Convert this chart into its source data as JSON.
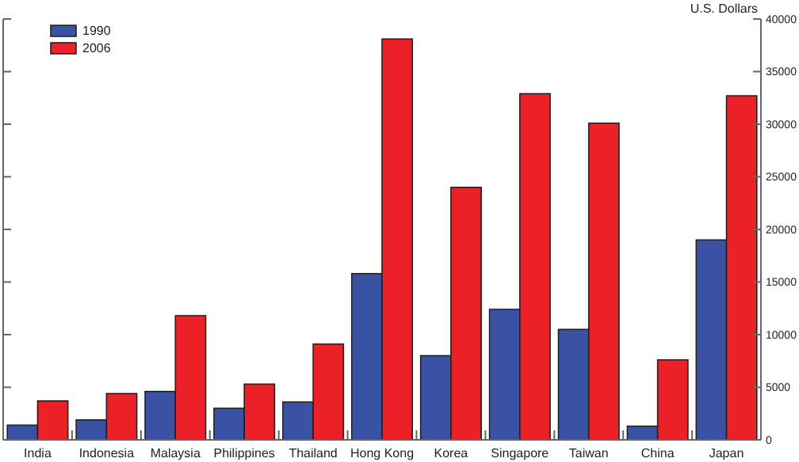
{
  "chart_data": {
    "type": "bar",
    "ylabel": "U.S. Dollars",
    "categories": [
      "India",
      "Indonesia",
      "Malaysia",
      "Philippines",
      "Thailand",
      "Hong Kong",
      "Korea",
      "Singapore",
      "Taiwan",
      "China",
      "Japan"
    ],
    "series": [
      {
        "name": "1990",
        "color": "#3a52a3",
        "values": [
          1400,
          1900,
          4600,
          3000,
          3600,
          15800,
          8000,
          12400,
          10500,
          1300,
          19000
        ]
      },
      {
        "name": "2006",
        "color": "#ec2027",
        "values": [
          3700,
          4400,
          11800,
          5300,
          9100,
          38100,
          24000,
          32900,
          30100,
          7600,
          32700
        ]
      }
    ],
    "ylim": [
      0,
      40000
    ],
    "yticks": [
      0,
      5000,
      10000,
      15000,
      20000,
      25000,
      30000,
      35000,
      40000
    ],
    "legend": "top left"
  }
}
